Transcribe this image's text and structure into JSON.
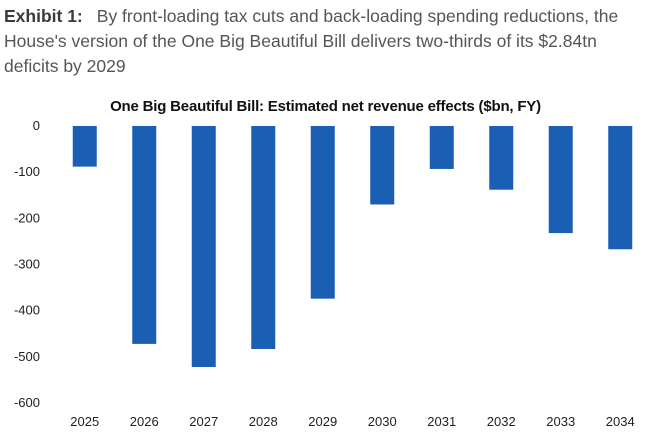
{
  "exhibit": {
    "label": "Exhibit 1:",
    "caption": "By front-loading tax cuts and back-loading spending reductions, the House's version of the One Big Beautiful Bill delivers two-thirds of its $2.84tn deficits by 2029"
  },
  "chart_data": {
    "type": "bar",
    "title": "One Big Beautiful Bill: Estimated net revenue effects ($bn, FY)",
    "xlabel": "",
    "ylabel": "",
    "categories": [
      "2025",
      "2026",
      "2027",
      "2028",
      "2029",
      "2030",
      "2031",
      "2032",
      "2033",
      "2034"
    ],
    "values": [
      -88,
      -472,
      -522,
      -483,
      -374,
      -170,
      -93,
      -138,
      -232,
      -267
    ],
    "ylim": [
      -600,
      0
    ],
    "yticks": [
      "0",
      "-100",
      "-200",
      "-300",
      "-400",
      "-500",
      "-600"
    ],
    "bar_color": "#1a5fb4",
    "grid": false,
    "legend": "none"
  }
}
